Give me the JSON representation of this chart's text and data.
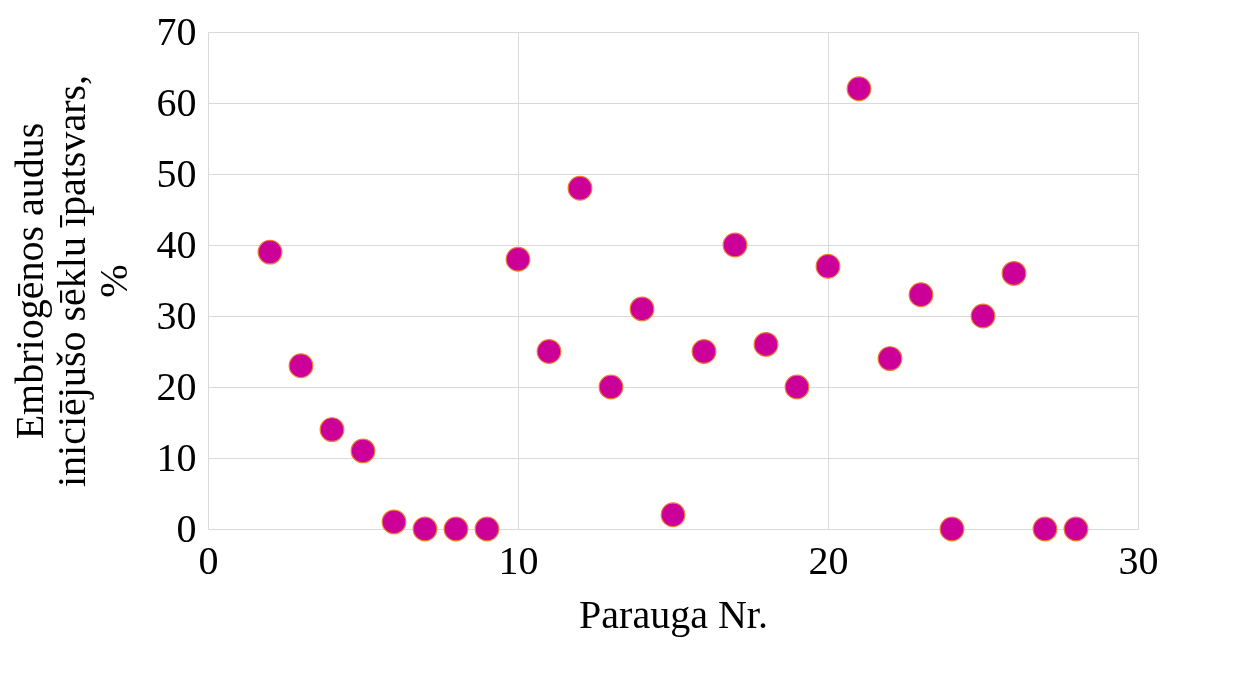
{
  "chart_data": {
    "type": "scatter",
    "xlabel": "Parauga Nr.",
    "ylabel": "Embriogēnos audus iniciējušo sēklu īpatsvars, %",
    "x": [
      2,
      3,
      4,
      5,
      6,
      7,
      8,
      9,
      10,
      11,
      12,
      13,
      14,
      15,
      16,
      17,
      18,
      19,
      20,
      21,
      22,
      23,
      24,
      25,
      26,
      27,
      28
    ],
    "series": [
      {
        "color": "#cc0099",
        "values": [
          39,
          23,
          14,
          11,
          1,
          0,
          0,
          0,
          38,
          25,
          48,
          20,
          31,
          2,
          25,
          40,
          26,
          20,
          37,
          62,
          24,
          33,
          0,
          30,
          36,
          0,
          0
        ]
      }
    ],
    "xlim": [
      0,
      30
    ],
    "xticks": [
      0,
      10,
      20,
      30
    ],
    "ylim": [
      0,
      70
    ],
    "yticks": [
      0,
      10,
      20,
      30,
      40,
      50,
      60,
      70
    ],
    "grid": true,
    "marker": "circle"
  }
}
